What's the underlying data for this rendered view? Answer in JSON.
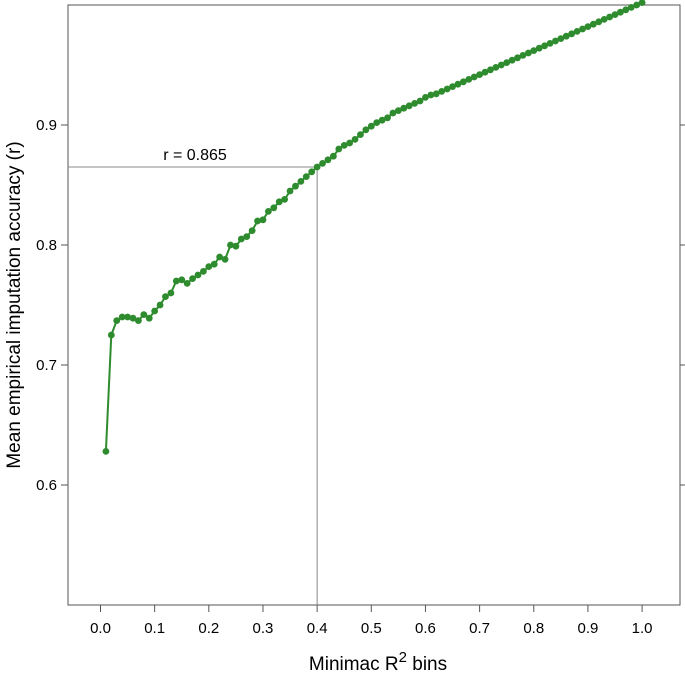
{
  "chart_data": {
    "type": "line",
    "title": "",
    "xlabel": "Minimac R",
    "xlabel_superscript": "2",
    "xlabel_suffix": " bins",
    "ylabel": "Mean empirical imputation accuracy (r)",
    "xlim": [
      -0.06,
      1.07
    ],
    "ylim": [
      0.5,
      1.0
    ],
    "xticks": [
      0.0,
      0.1,
      0.2,
      0.3,
      0.4,
      0.5,
      0.6,
      0.7,
      0.8,
      0.9,
      1.0
    ],
    "xtick_labels": [
      "0.0",
      "0.1",
      "0.2",
      "0.3",
      "0.4",
      "0.5",
      "0.6",
      "0.7",
      "0.8",
      "0.9",
      "1.0"
    ],
    "yticks": [
      0.6,
      0.7,
      0.8,
      0.9
    ],
    "ytick_labels": [
      "0.6",
      "0.7",
      "0.8",
      "0.9"
    ],
    "grid": false,
    "legend": "none",
    "series": [
      {
        "color": "#2e8b2e",
        "x": [
          0.01,
          0.02,
          0.03,
          0.04,
          0.05,
          0.06,
          0.07,
          0.08,
          0.09,
          0.1,
          0.11,
          0.12,
          0.13,
          0.14,
          0.15,
          0.16,
          0.17,
          0.18,
          0.19,
          0.2,
          0.21,
          0.22,
          0.23,
          0.24,
          0.25,
          0.26,
          0.27,
          0.28,
          0.29,
          0.3,
          0.31,
          0.32,
          0.33,
          0.34,
          0.35,
          0.36,
          0.37,
          0.38,
          0.39,
          0.4,
          0.41,
          0.42,
          0.43,
          0.44,
          0.45,
          0.46,
          0.47,
          0.48,
          0.49,
          0.5,
          0.51,
          0.52,
          0.53,
          0.54,
          0.55,
          0.56,
          0.57,
          0.58,
          0.59,
          0.6,
          0.61,
          0.62,
          0.63,
          0.64,
          0.65,
          0.66,
          0.67,
          0.68,
          0.69,
          0.7,
          0.71,
          0.72,
          0.73,
          0.74,
          0.75,
          0.76,
          0.77,
          0.78,
          0.79,
          0.8,
          0.81,
          0.82,
          0.83,
          0.84,
          0.85,
          0.86,
          0.87,
          0.88,
          0.89,
          0.9,
          0.91,
          0.92,
          0.93,
          0.94,
          0.95,
          0.96,
          0.97,
          0.98,
          0.99,
          1.0
        ],
        "y": [
          0.628,
          0.725,
          0.737,
          0.74,
          0.74,
          0.739,
          0.737,
          0.742,
          0.739,
          0.745,
          0.75,
          0.757,
          0.76,
          0.77,
          0.771,
          0.768,
          0.772,
          0.775,
          0.778,
          0.782,
          0.784,
          0.79,
          0.788,
          0.8,
          0.799,
          0.805,
          0.807,
          0.812,
          0.82,
          0.821,
          0.828,
          0.831,
          0.836,
          0.838,
          0.845,
          0.849,
          0.853,
          0.857,
          0.861,
          0.865,
          0.868,
          0.871,
          0.874,
          0.88,
          0.883,
          0.885,
          0.888,
          0.892,
          0.896,
          0.899,
          0.902,
          0.904,
          0.906,
          0.91,
          0.912,
          0.914,
          0.916,
          0.918,
          0.92,
          0.923,
          0.925,
          0.926,
          0.928,
          0.93,
          0.932,
          0.934,
          0.936,
          0.938,
          0.94,
          0.942,
          0.944,
          0.946,
          0.948,
          0.95,
          0.952,
          0.954,
          0.956,
          0.958,
          0.96,
          0.962,
          0.964,
          0.966,
          0.968,
          0.97,
          0.972,
          0.974,
          0.976,
          0.978,
          0.98,
          0.982,
          0.984,
          0.986,
          0.988,
          0.99,
          0.992,
          0.994,
          0.996,
          0.998,
          1.0,
          1.002
        ]
      }
    ],
    "reference": {
      "x": 0.4,
      "y": 0.865,
      "label": "r = 0.865"
    }
  }
}
